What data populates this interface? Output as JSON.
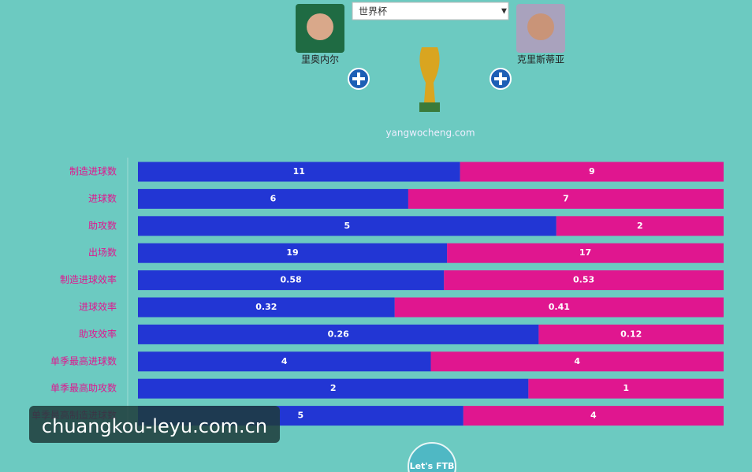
{
  "chart_data": {
    "type": "bar",
    "stacked": "percent",
    "selector": "世界杯",
    "source": "yangwocheng.com",
    "watermark": "chuangkou-leyu.com.cn",
    "button": "Let's FTB",
    "categories": [
      "制造进球数",
      "进球数",
      "助攻数",
      "出场数",
      "制造进球效率",
      "进球效率",
      "助攻效率",
      "单季最高进球数",
      "单季最高助攻数",
      "单季最高制造进球数"
    ],
    "series": [
      {
        "name": "里奥内尔",
        "color": "#2236d4",
        "values": [
          11,
          6,
          5,
          19,
          0.58,
          0.32,
          0.26,
          4,
          2,
          5
        ]
      },
      {
        "name": "克里斯蒂亚",
        "color": "#e0168f",
        "values": [
          9,
          7,
          2,
          17,
          0.53,
          0.41,
          0.12,
          4,
          1,
          4
        ]
      }
    ]
  }
}
